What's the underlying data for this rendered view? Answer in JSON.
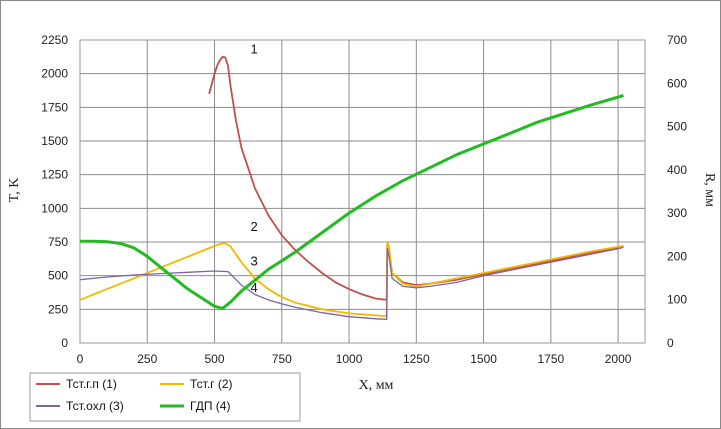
{
  "chart_data": {
    "type": "line",
    "xlabel": "X, мм",
    "ylabel": "T, K",
    "y2label": "R, мм",
    "xlim": [
      0,
      2100
    ],
    "ylim": [
      0,
      2250
    ],
    "y2lim": [
      0,
      700
    ],
    "x_ticks": [
      0,
      250,
      500,
      750,
      1000,
      1250,
      1500,
      1750,
      2000
    ],
    "y_ticks": [
      0,
      250,
      500,
      750,
      1000,
      1250,
      1500,
      1750,
      2000,
      2250
    ],
    "y2_ticks": [
      0,
      100,
      200,
      300,
      400,
      500,
      600,
      700
    ],
    "grid": true,
    "legend_position": "bottom-left",
    "series": [
      {
        "name": "Тст.г.п (1)",
        "color": "#c0504d",
        "axis": "left",
        "x": [
          480,
          500,
          510,
          520,
          530,
          540,
          550,
          560,
          580,
          600,
          650,
          700,
          750,
          800,
          850,
          900,
          950,
          1000,
          1050,
          1100,
          1140,
          1142,
          1148,
          1160,
          1200,
          1250,
          1300,
          1400,
          1500,
          1600,
          1700,
          1800,
          1900,
          2000,
          2020
        ],
        "y": [
          1850,
          2000,
          2060,
          2100,
          2125,
          2120,
          2060,
          1900,
          1650,
          1450,
          1150,
          950,
          800,
          690,
          600,
          520,
          450,
          400,
          360,
          330,
          320,
          740,
          700,
          520,
          450,
          430,
          440,
          470,
          510,
          550,
          590,
          630,
          670,
          710,
          720
        ]
      },
      {
        "name": "Тст.г (2)",
        "color": "#f5b800",
        "axis": "left",
        "x": [
          0,
          100,
          200,
          300,
          400,
          500,
          520,
          540,
          560,
          600,
          650,
          700,
          750,
          800,
          900,
          1000,
          1100,
          1140,
          1142,
          1148,
          1160,
          1200,
          1250,
          1300,
          1400,
          1500,
          1600,
          1700,
          1800,
          1900,
          2000,
          2020
        ],
        "y": [
          320,
          400,
          480,
          560,
          640,
          720,
          735,
          740,
          715,
          600,
          480,
          400,
          340,
          300,
          250,
          220,
          205,
          200,
          750,
          720,
          520,
          440,
          420,
          440,
          480,
          520,
          560,
          600,
          640,
          680,
          715,
          720
        ]
      },
      {
        "name": "Тст.охл (3)",
        "color": "#8064a2",
        "axis": "left",
        "x": [
          0,
          100,
          200,
          300,
          400,
          500,
          550,
          600,
          650,
          700,
          750,
          800,
          900,
          1000,
          1100,
          1140,
          1142,
          1148,
          1160,
          1200,
          1250,
          1300,
          1400,
          1500,
          1600,
          1700,
          1800,
          1900,
          2000,
          2020
        ],
        "y": [
          470,
          490,
          505,
          515,
          525,
          535,
          530,
          430,
          360,
          320,
          290,
          265,
          225,
          195,
          180,
          175,
          700,
          650,
          480,
          420,
          410,
          420,
          450,
          500,
          540,
          580,
          620,
          660,
          700,
          710
        ]
      },
      {
        "name": "ГДП (4)",
        "color": "#22bb22",
        "axis": "right",
        "x": [
          0,
          50,
          100,
          150,
          200,
          250,
          300,
          350,
          400,
          450,
          500,
          530,
          560,
          600,
          650,
          700,
          750,
          800,
          900,
          1000,
          1100,
          1200,
          1300,
          1400,
          1500,
          1600,
          1700,
          1800,
          1900,
          2000,
          2020
        ],
        "y": [
          235,
          235,
          234,
          230,
          220,
          200,
          175,
          150,
          125,
          105,
          85,
          80,
          95,
          120,
          145,
          170,
          190,
          210,
          255,
          300,
          340,
          375,
          405,
          435,
          460,
          485,
          510,
          530,
          550,
          568,
          572
        ]
      }
    ],
    "annotations": [
      {
        "text": "1",
        "x": 480,
        "y": 2150
      },
      {
        "text": "2",
        "x": 480,
        "y": 830
      },
      {
        "text": "3",
        "x": 480,
        "y": 575
      },
      {
        "text": "4",
        "x": 480,
        "y": 380
      }
    ]
  }
}
